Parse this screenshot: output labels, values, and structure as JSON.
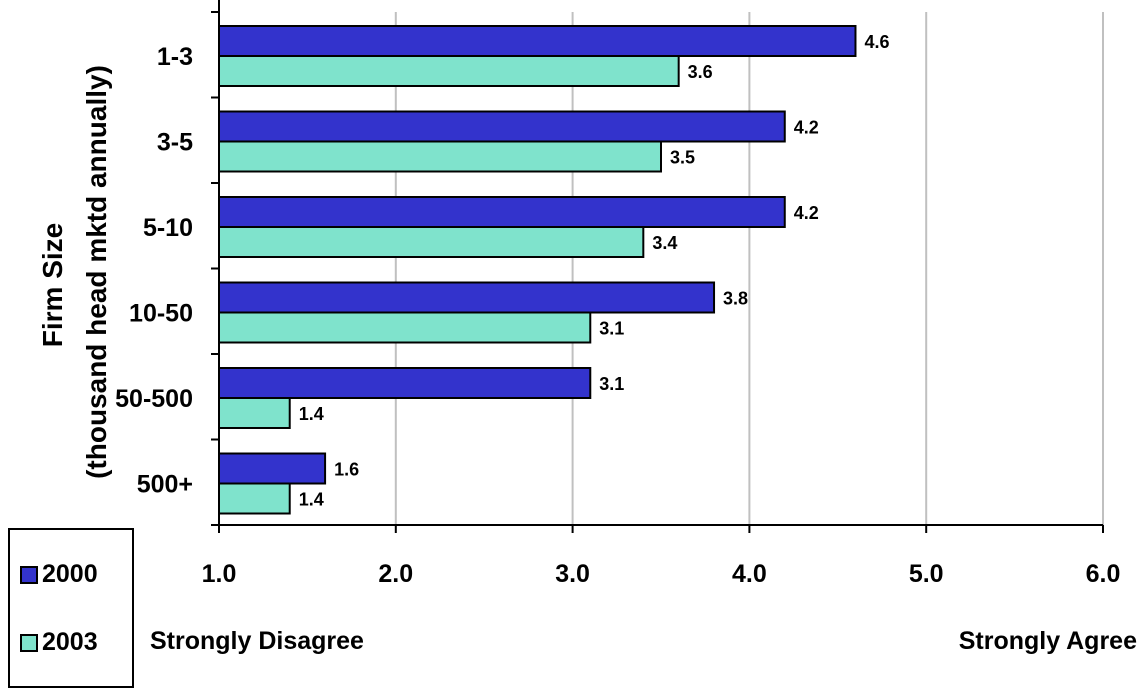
{
  "chart_data": {
    "type": "bar",
    "orientation": "horizontal",
    "categories": [
      "1-3",
      "3-5",
      "5-10",
      "10-50",
      "50-500",
      "500+"
    ],
    "series": [
      {
        "name": "2000",
        "values": [
          4.6,
          4.2,
          4.2,
          3.8,
          3.1,
          1.6
        ],
        "color": "#3333cc"
      },
      {
        "name": "2003",
        "values": [
          3.6,
          3.5,
          3.4,
          3.1,
          1.4,
          1.4
        ],
        "color": "#7fe3cc"
      }
    ],
    "ylabel_line1": "Firm Size",
    "ylabel_line2": "(thousand head mktd annually)",
    "xlim": [
      1.0,
      6.0
    ],
    "xticks": [
      "1.0",
      "2.0",
      "3.0",
      "4.0",
      "5.0",
      "6.0"
    ],
    "x_annotation_left": "Strongly Disagree",
    "x_annotation_right": "Strongly Agree",
    "grid": "vertical",
    "legend_position": "bottom-left"
  }
}
